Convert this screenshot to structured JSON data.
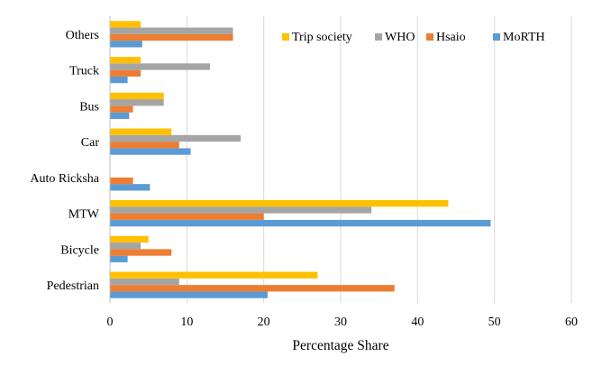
{
  "chart_data": {
    "type": "bar",
    "orientation": "horizontal",
    "categories": [
      "Pedestrian",
      "Bicycle",
      "MTW",
      "Auto Ricksha",
      "Car",
      "Bus",
      "Truck",
      "Others"
    ],
    "series": [
      {
        "name": "MoRTH",
        "color": "#5B9BD5",
        "values": [
          20.5,
          2.3,
          49.5,
          5.2,
          10.5,
          2.5,
          2.3,
          4.2
        ]
      },
      {
        "name": "Hsaio",
        "color": "#ED7D31",
        "values": [
          37,
          8,
          20,
          3,
          9,
          3,
          4,
          16
        ]
      },
      {
        "name": "WHO",
        "color": "#A5A5A5",
        "values": [
          9,
          4,
          34,
          0,
          17,
          7,
          13,
          16
        ]
      },
      {
        "name": "Trip society",
        "color": "#FFC000",
        "values": [
          27,
          5,
          44,
          0,
          8,
          7,
          4,
          4
        ]
      }
    ],
    "xlabel": "Percentage Share",
    "ylabel": "",
    "xlim": [
      0,
      60
    ],
    "xticks": [
      0,
      10,
      20,
      30,
      40,
      50,
      60
    ],
    "grid": "vertical",
    "legend_position": "top-right",
    "legend_order": [
      "Trip society",
      "WHO",
      "Hsaio",
      "MoRTH"
    ]
  }
}
